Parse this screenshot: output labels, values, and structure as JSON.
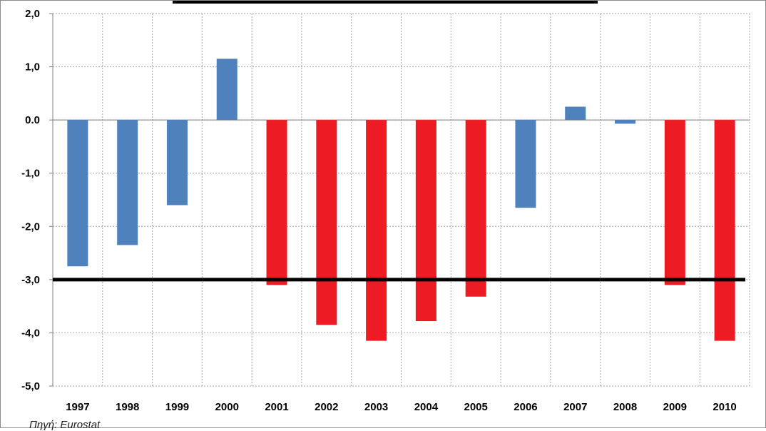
{
  "chart_data": {
    "type": "bar",
    "categories": [
      "1997",
      "1998",
      "1999",
      "2000",
      "2001",
      "2002",
      "2003",
      "2004",
      "2005",
      "2006",
      "2007",
      "2008",
      "2009",
      "2010"
    ],
    "values": [
      -2.75,
      -2.35,
      -1.6,
      1.15,
      -3.1,
      -3.85,
      -4.15,
      -3.78,
      -3.32,
      -1.65,
      0.25,
      -0.07,
      -3.1,
      -4.15
    ],
    "ylim": [
      -5.0,
      2.0
    ],
    "yticks": [
      2.0,
      1.0,
      0.0,
      -1.0,
      -2.0,
      -3.0,
      -4.0,
      -5.0
    ],
    "ytick_labels": [
      "2,0",
      "1,0",
      "0.0",
      "-1,0",
      "-2,0",
      "-3,0",
      "-4,0",
      "-5,0"
    ],
    "reference_line": -3.0,
    "grid": true,
    "colors": {
      "above_threshold": "#4f81bd",
      "below_threshold": "#ed1c24",
      "reference_line": "#000000",
      "grid": "#a6a6a6"
    },
    "source": "Πηγή: Eurostat"
  }
}
